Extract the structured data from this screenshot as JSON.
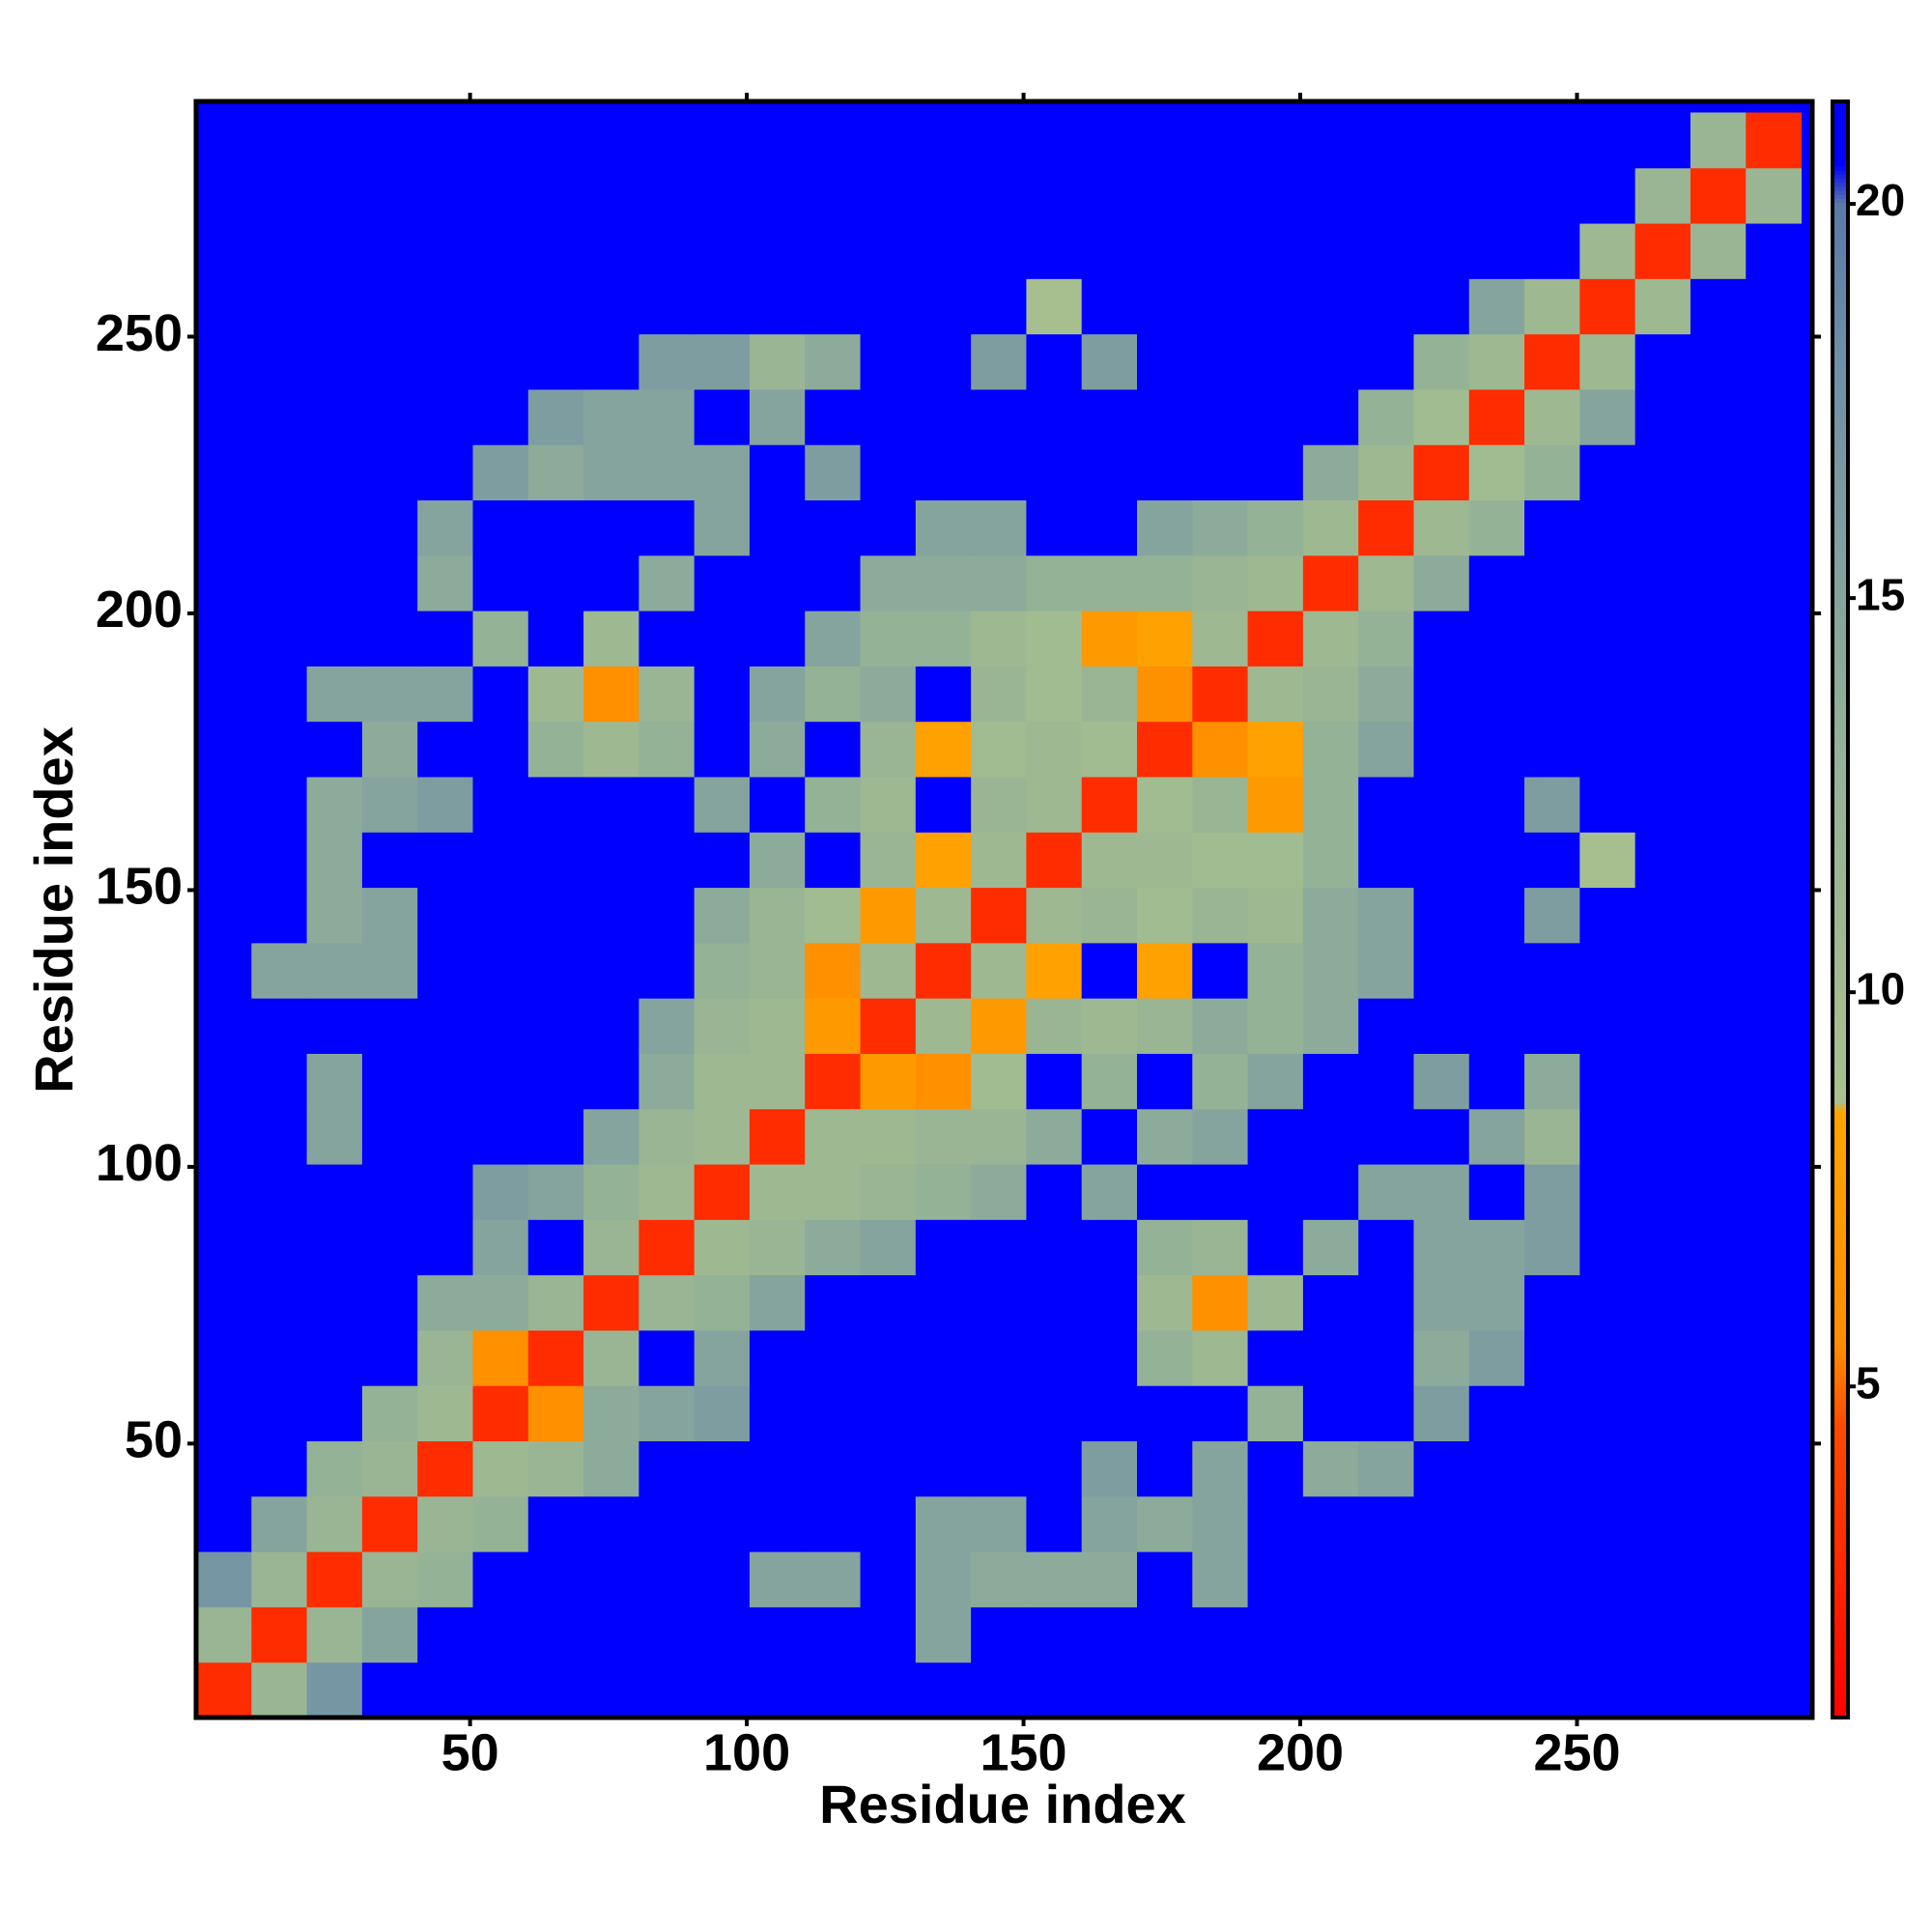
{
  "chart_data": {
    "type": "heatmap",
    "xlabel": "Residue index",
    "ylabel": "Residue index",
    "xlim": [
      0.5,
      292.5
    ],
    "ylim": [
      0.5,
      292.5
    ],
    "xticks": [
      50,
      100,
      150,
      200,
      250
    ],
    "yticks": [
      50,
      100,
      150,
      200,
      250
    ],
    "clim": [
      0.8,
      21.3
    ],
    "cticks": [
      5,
      10,
      15,
      20
    ],
    "colorscale": [
      [
        0.8,
        "#ff0000"
      ],
      [
        4.5,
        "#ff4a00"
      ],
      [
        5.5,
        "#ff8c00"
      ],
      [
        8.5,
        "#ffa500"
      ],
      [
        8.6,
        "#a9c08e"
      ],
      [
        13,
        "#94b296"
      ],
      [
        18,
        "#6f8fa8"
      ],
      [
        20,
        "#5a7aa8"
      ],
      [
        20.5,
        "#0000ff"
      ],
      [
        21.3,
        "#0000ff"
      ]
    ],
    "x": [
      5.5,
      15.5,
      25.5,
      35.5,
      45.5,
      55.5,
      65.5,
      75.5,
      85.5,
      95.5,
      105.5,
      115.5,
      125.5,
      135.5,
      145.5,
      155.5,
      165.5,
      175.5,
      185.5,
      195.5,
      205.5,
      215.5,
      225.5,
      235.5,
      245.5,
      255.5,
      265.5,
      275.5,
      285.5
    ],
    "y": [
      5.5,
      15.5,
      25.5,
      35.5,
      45.5,
      55.5,
      65.5,
      75.5,
      85.5,
      95.5,
      105.5,
      115.5,
      125.5,
      135.5,
      145.5,
      155.5,
      165.5,
      175.5,
      185.5,
      195.5,
      205.5,
      215.5,
      225.5,
      235.5,
      245.5,
      255.5,
      265.5,
      275.5,
      285.5
    ],
    "z": [
      [
        3,
        12,
        17,
        21,
        21,
        21,
        21,
        21,
        21,
        21,
        21,
        21,
        21,
        21,
        21,
        21,
        21,
        21,
        21,
        21,
        21,
        21,
        21,
        21,
        21,
        21,
        21,
        21,
        21
      ],
      [
        12,
        3,
        12,
        15,
        21,
        21,
        21,
        21,
        21,
        21,
        21,
        21,
        21,
        15,
        21,
        21,
        21,
        21,
        21,
        21,
        21,
        21,
        21,
        21,
        21,
        21,
        21,
        21,
        21
      ],
      [
        17,
        12,
        3,
        12,
        13,
        21,
        21,
        21,
        21,
        21,
        15,
        15,
        21,
        15,
        14,
        14,
        14,
        21,
        15,
        21,
        21,
        21,
        21,
        21,
        21,
        21,
        21,
        21,
        21
      ],
      [
        21,
        15,
        12,
        3,
        12,
        13,
        21,
        21,
        21,
        21,
        21,
        21,
        21,
        15,
        15,
        21,
        15,
        14,
        15,
        21,
        21,
        21,
        21,
        21,
        21,
        21,
        21,
        21,
        21
      ],
      [
        21,
        21,
        13,
        12,
        3,
        11,
        12,
        14,
        21,
        21,
        21,
        21,
        21,
        21,
        21,
        21,
        16,
        21,
        15,
        21,
        14,
        15,
        21,
        21,
        21,
        21,
        21,
        21,
        21
      ],
      [
        21,
        21,
        21,
        13,
        11,
        3,
        6,
        14,
        15,
        16,
        21,
        21,
        21,
        21,
        21,
        21,
        21,
        21,
        21,
        13,
        21,
        21,
        16,
        21,
        21,
        21,
        21,
        21,
        21
      ],
      [
        21,
        21,
        21,
        21,
        12,
        6,
        3,
        12,
        21,
        15,
        21,
        21,
        21,
        21,
        21,
        21,
        21,
        13,
        11,
        21,
        21,
        21,
        14,
        16,
        21,
        21,
        21,
        21,
        21
      ],
      [
        21,
        21,
        21,
        21,
        14,
        14,
        12,
        3,
        12,
        13,
        15,
        21,
        21,
        21,
        21,
        21,
        21,
        11,
        6,
        11,
        21,
        21,
        15,
        15,
        21,
        21,
        21,
        21,
        21
      ],
      [
        21,
        21,
        21,
        21,
        21,
        15,
        21,
        12,
        3,
        11,
        12,
        14,
        15,
        21,
        21,
        21,
        21,
        13,
        12,
        21,
        14,
        21,
        15,
        15,
        16,
        21,
        21,
        21,
        21
      ],
      [
        21,
        21,
        21,
        21,
        21,
        16,
        15,
        13,
        11,
        3,
        11,
        11,
        12,
        13,
        14,
        21,
        15,
        21,
        21,
        21,
        21,
        15,
        15,
        21,
        16,
        21,
        21,
        21,
        21
      ],
      [
        21,
        21,
        15,
        21,
        21,
        21,
        21,
        15,
        12,
        11,
        3,
        11,
        11,
        12,
        12,
        14,
        21,
        14,
        15,
        21,
        21,
        21,
        21,
        15,
        12,
        21,
        21,
        21,
        21
      ],
      [
        21,
        21,
        15,
        21,
        21,
        21,
        21,
        21,
        14,
        11,
        11,
        3,
        7,
        6,
        10,
        21,
        13,
        21,
        13,
        15,
        21,
        21,
        16,
        21,
        14,
        21,
        21,
        21,
        21
      ],
      [
        21,
        21,
        21,
        21,
        21,
        21,
        21,
        21,
        15,
        12,
        11,
        7,
        3,
        11,
        7,
        12,
        11,
        12,
        14,
        13,
        14,
        21,
        21,
        21,
        21,
        21,
        21,
        21,
        21
      ],
      [
        21,
        15,
        15,
        15,
        21,
        21,
        21,
        21,
        21,
        13,
        12,
        6,
        11,
        3,
        11,
        8,
        21,
        8,
        21,
        13,
        14,
        15,
        21,
        21,
        21,
        21,
        21,
        21,
        21
      ],
      [
        21,
        21,
        14,
        15,
        21,
        21,
        21,
        21,
        21,
        14,
        12,
        10,
        7,
        11,
        3,
        11,
        12,
        10,
        12,
        11,
        14,
        15,
        21,
        21,
        16,
        21,
        21,
        21,
        21
      ],
      [
        21,
        21,
        14,
        21,
        21,
        21,
        21,
        21,
        21,
        21,
        14,
        21,
        12,
        8,
        11,
        3,
        11,
        11,
        10,
        10,
        13,
        21,
        21,
        21,
        21,
        9,
        21,
        21,
        21
      ],
      [
        21,
        21,
        14,
        15,
        16,
        21,
        21,
        21,
        21,
        15,
        21,
        13,
        11,
        21,
        12,
        11,
        3,
        10,
        12,
        7,
        13,
        21,
        21,
        21,
        16,
        21,
        21,
        21,
        21
      ],
      [
        21,
        21,
        21,
        14,
        21,
        21,
        13,
        11,
        13,
        21,
        14,
        21,
        12,
        8,
        10,
        11,
        10,
        3,
        6,
        8,
        13,
        15,
        21,
        21,
        21,
        21,
        21,
        21,
        21
      ],
      [
        21,
        21,
        15,
        15,
        15,
        21,
        11,
        6,
        12,
        21,
        15,
        13,
        14,
        21,
        12,
        10,
        12,
        6,
        3,
        11,
        12,
        14,
        21,
        21,
        21,
        21,
        21,
        21,
        21
      ],
      [
        21,
        21,
        21,
        21,
        21,
        13,
        21,
        11,
        21,
        21,
        21,
        15,
        13,
        13,
        11,
        10,
        7,
        8,
        11,
        3,
        11,
        13,
        21,
        21,
        21,
        21,
        21,
        21,
        21
      ],
      [
        21,
        21,
        21,
        21,
        14,
        21,
        21,
        21,
        14,
        21,
        21,
        21,
        14,
        14,
        14,
        13,
        13,
        13,
        12,
        11,
        3,
        11,
        14,
        21,
        21,
        21,
        21,
        21,
        21
      ],
      [
        21,
        21,
        21,
        21,
        15,
        21,
        21,
        21,
        21,
        15,
        21,
        21,
        21,
        15,
        15,
        21,
        21,
        15,
        14,
        13,
        11,
        3,
        11,
        13,
        21,
        21,
        21,
        21,
        21
      ],
      [
        21,
        21,
        21,
        21,
        21,
        16,
        14,
        15,
        15,
        15,
        21,
        16,
        21,
        21,
        21,
        21,
        21,
        21,
        21,
        21,
        14,
        11,
        3,
        10,
        13,
        21,
        21,
        21,
        21
      ],
      [
        21,
        21,
        21,
        21,
        21,
        21,
        16,
        15,
        15,
        21,
        15,
        21,
        21,
        21,
        21,
        21,
        21,
        21,
        21,
        21,
        21,
        13,
        10,
        3,
        11,
        15,
        21,
        21,
        21
      ],
      [
        21,
        21,
        21,
        21,
        21,
        21,
        21,
        21,
        16,
        16,
        12,
        14,
        21,
        21,
        16,
        21,
        16,
        21,
        21,
        21,
        21,
        21,
        13,
        11,
        3,
        11,
        21,
        21,
        21
      ],
      [
        21,
        21,
        21,
        21,
        21,
        21,
        21,
        21,
        21,
        21,
        21,
        21,
        21,
        21,
        21,
        9,
        21,
        21,
        21,
        21,
        21,
        21,
        21,
        15,
        11,
        3,
        11,
        21,
        21
      ],
      [
        21,
        21,
        21,
        21,
        21,
        21,
        21,
        21,
        21,
        21,
        21,
        21,
        21,
        21,
        21,
        21,
        21,
        21,
        21,
        21,
        21,
        21,
        21,
        21,
        21,
        11,
        3,
        12,
        21
      ],
      [
        21,
        21,
        21,
        21,
        21,
        21,
        21,
        21,
        21,
        21,
        21,
        21,
        21,
        21,
        21,
        21,
        21,
        21,
        21,
        21,
        21,
        21,
        21,
        21,
        21,
        21,
        12,
        3,
        12
      ],
      [
        21,
        21,
        21,
        21,
        21,
        21,
        21,
        21,
        21,
        21,
        21,
        21,
        21,
        21,
        21,
        21,
        21,
        21,
        21,
        21,
        21,
        21,
        21,
        21,
        21,
        21,
        21,
        12,
        3
      ]
    ]
  }
}
